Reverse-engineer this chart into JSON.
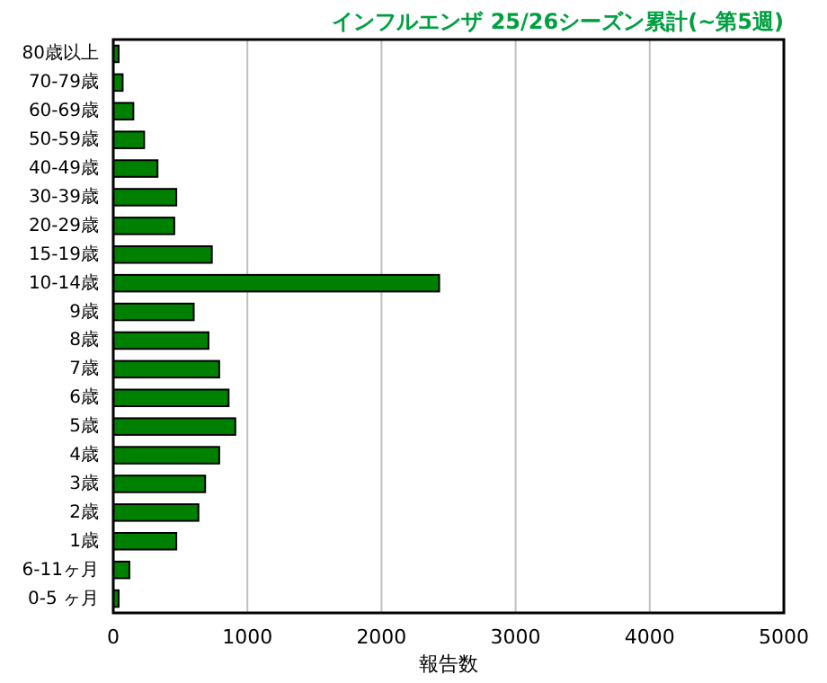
{
  "chart_data": {
    "type": "bar",
    "orientation": "horizontal",
    "title": "インフルエンザ 25/26シーズン累計(~第5週)",
    "xlabel": "報告数",
    "categories": [
      "80歳以上",
      "70-79歳",
      "60-69歳",
      "50-59歳",
      "40-49歳",
      "30-39歳",
      "20-29歳",
      "15-19歳",
      "10-14歳",
      "9歳",
      "8歳",
      "7歳",
      "6歳",
      "5歳",
      "4歳",
      "3歳",
      "2歳",
      "1歳",
      "6-11ヶ月",
      "0-5 ヶ月"
    ],
    "values": [
      40,
      70,
      150,
      230,
      330,
      470,
      455,
      735,
      2430,
      600,
      710,
      790,
      860,
      910,
      790,
      685,
      635,
      470,
      120,
      40
    ],
    "color": "#008000",
    "xlim": [
      0,
      5000
    ],
    "xticks": [
      0,
      1000,
      2000,
      3000,
      4000,
      5000
    ],
    "grid": "x"
  }
}
